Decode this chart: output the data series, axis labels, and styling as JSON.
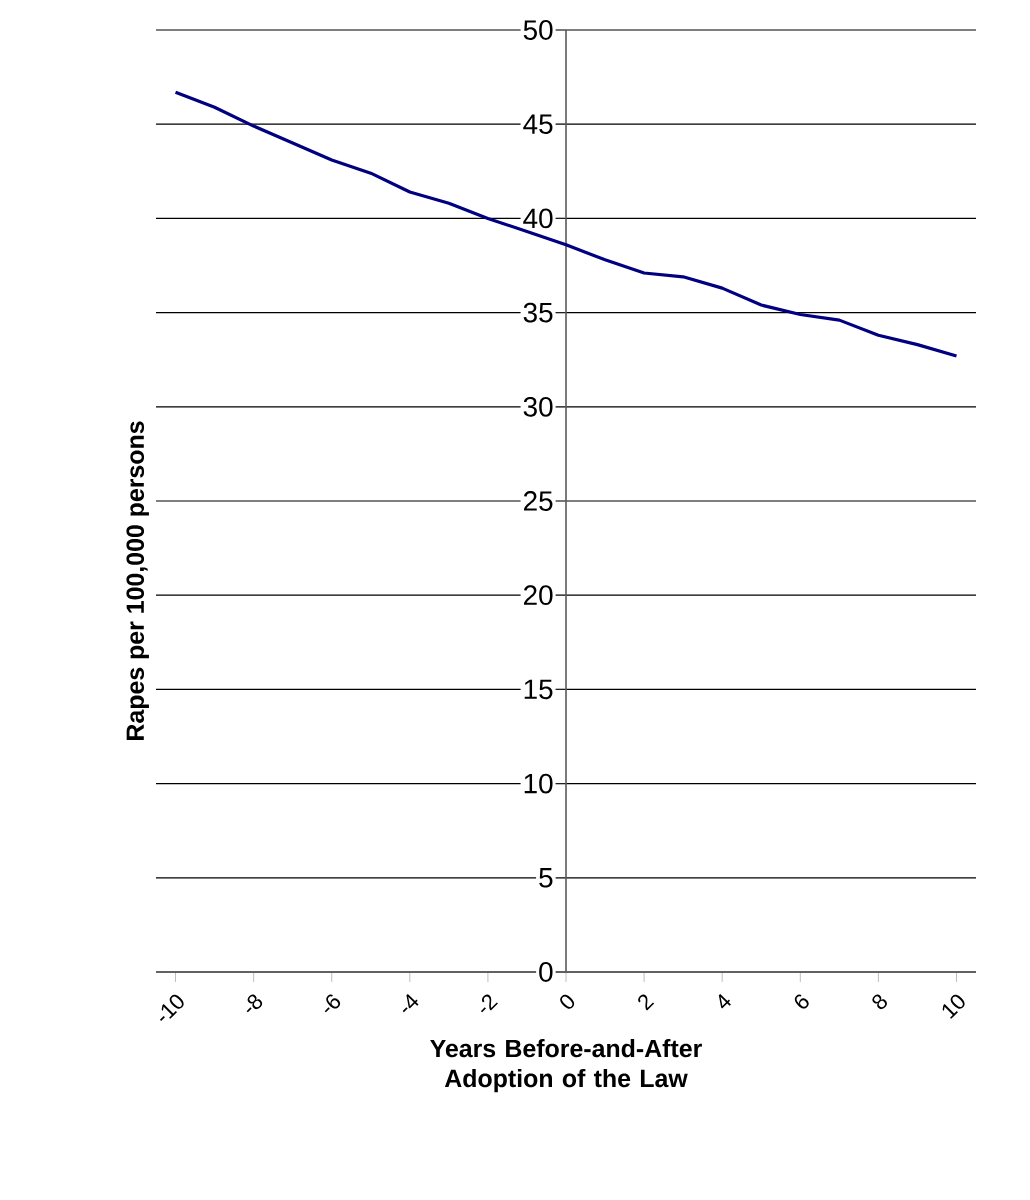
{
  "chart_data": {
    "type": "line",
    "xlabel": "Years Before-and-After Adoption of the Law",
    "ylabel": "Rapes per 100,000 persons",
    "x": [
      -10,
      -9,
      -8,
      -7,
      -6,
      -5,
      -4,
      -3,
      -2,
      -1,
      0,
      1,
      2,
      3,
      4,
      5,
      6,
      7,
      8,
      9,
      10
    ],
    "series": [
      {
        "color": "#000080",
        "values": [
          46.7,
          45.9,
          44.9,
          44.0,
          43.1,
          42.4,
          41.4,
          40.8,
          40.0,
          39.3,
          38.6,
          37.8,
          37.1,
          36.9,
          36.3,
          35.4,
          34.9,
          34.6,
          33.8,
          33.3,
          32.7
        ]
      }
    ],
    "xlim": [
      -10.5,
      10.5
    ],
    "xticks": [
      -10,
      -8,
      -6,
      -4,
      -2,
      0,
      2,
      4,
      6,
      8,
      10
    ],
    "ylim": [
      0,
      50
    ],
    "yticks": [
      0,
      5,
      10,
      15,
      20,
      25,
      30,
      35,
      40,
      45,
      50
    ],
    "grid": "y",
    "marker": "none",
    "line_style": "solid"
  }
}
